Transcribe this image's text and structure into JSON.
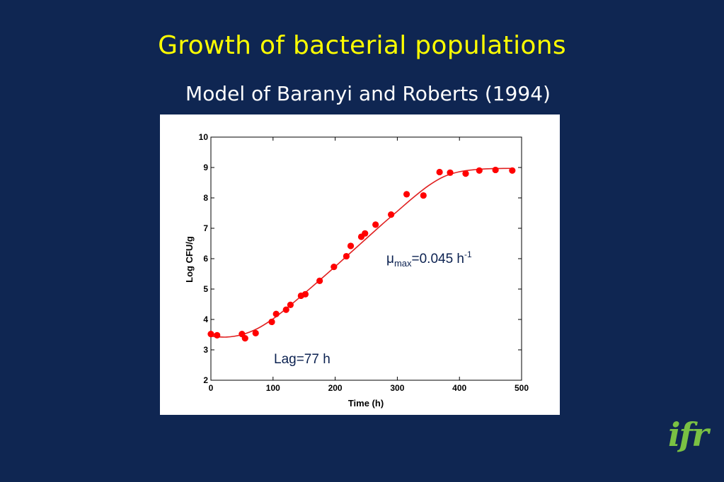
{
  "slide": {
    "title": "Growth of bacterial populations",
    "subtitle": "Model of Baranyi and Roberts (1994)",
    "logo_text": "ifr"
  },
  "colors": {
    "background": "#0f2652",
    "title": "#ffff00",
    "subtitle": "#ffffff",
    "points": "#ff0000",
    "fit_line": "#e02020",
    "annotation": "#0b2150",
    "logo": "#7ac143"
  },
  "chart_data": {
    "type": "scatter",
    "xlabel": "Time (h)",
    "ylabel": "Log CFU/g",
    "xlim": [
      0,
      500
    ],
    "ylim": [
      2,
      10
    ],
    "xticks": [
      0,
      100,
      200,
      300,
      400,
      500
    ],
    "yticks": [
      2,
      3,
      4,
      5,
      6,
      7,
      8,
      9,
      10
    ],
    "grid": false,
    "annotations": {
      "mu_symbol": "μ",
      "mu_subscript": "max",
      "mu_value": "=0.045 h",
      "mu_superscript": "-1",
      "lag": "Lag=77 h"
    },
    "series": [
      {
        "type": "scatter",
        "x": [
          0,
          10,
          50,
          55,
          72,
          98,
          105,
          121,
          128,
          145,
          152,
          175,
          198,
          218,
          225,
          242,
          248,
          265,
          290,
          315,
          342,
          368,
          385,
          410,
          432,
          458,
          485
        ],
        "y": [
          3.52,
          3.48,
          3.52,
          3.38,
          3.55,
          3.92,
          4.18,
          4.32,
          4.48,
          4.78,
          4.83,
          5.27,
          5.73,
          6.08,
          6.42,
          6.72,
          6.83,
          7.12,
          7.45,
          8.12,
          8.08,
          8.85,
          8.83,
          8.8,
          8.9,
          8.92,
          8.9
        ]
      },
      {
        "type": "line",
        "x": [
          0,
          25,
          50,
          75,
          100,
          125,
          150,
          175,
          200,
          225,
          250,
          275,
          300,
          325,
          350,
          375,
          400,
          425,
          450,
          475,
          485
        ],
        "y": [
          3.45,
          3.42,
          3.5,
          3.7,
          4.02,
          4.42,
          4.85,
          5.29,
          5.74,
          6.2,
          6.66,
          7.12,
          7.56,
          8.0,
          8.4,
          8.7,
          8.86,
          8.93,
          8.96,
          8.97,
          8.97
        ]
      }
    ]
  }
}
